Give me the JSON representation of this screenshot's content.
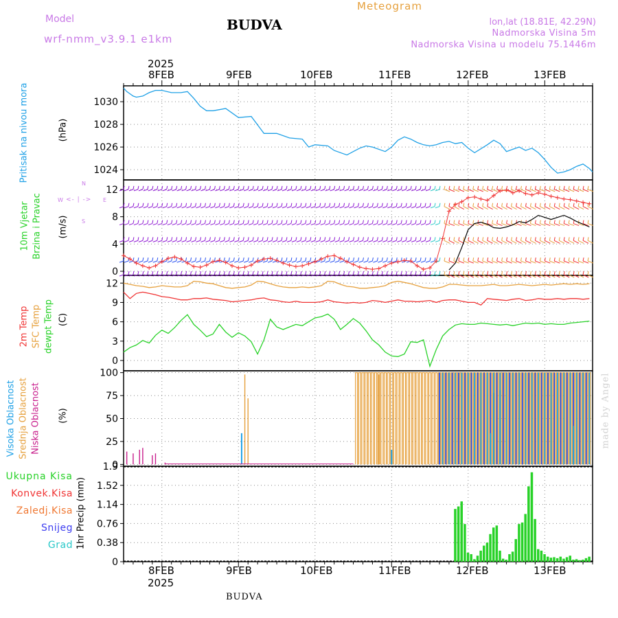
{
  "header": {
    "model_label": "Model",
    "model_name": "wrf-nmm_v3.9.1 e1km",
    "station": "BUDVA",
    "meteogram": "Meteogram",
    "lonlat": "lon,lat (18.81E, 42.29N)",
    "elevation": "Nadmorska Visina 5m",
    "model_elevation": "Nadmorska Visina u modelu 75.1446m",
    "footer_station": "BUDVA",
    "watermark": "made by Angel"
  },
  "colors": {
    "cyan": "#1ea0e6",
    "blue": "#2850f0",
    "purple": "#8c14d2",
    "red": "#f03232",
    "orange": "#e6a03c",
    "green": "#28d228",
    "magenta": "#c81e8c",
    "black": "#000000",
    "teal": "#28c8c8",
    "violet": "#c878e6"
  },
  "chart_data": [
    {
      "id": "pressure",
      "type": "line",
      "ylabel": "(hPa)",
      "side_labels": [
        "Pritisak na nivou mora"
      ],
      "ylim": [
        1023.1,
        1031.4
      ],
      "yticks": [
        1024,
        1026,
        1028,
        1030
      ],
      "x_start_hour": 0,
      "x_end_hour": 147,
      "x": [
        0,
        1,
        2,
        3,
        4,
        6,
        8,
        10,
        12,
        15,
        18,
        20,
        22,
        24,
        26,
        28,
        30,
        32,
        36,
        40,
        44,
        48,
        52,
        56,
        58,
        60,
        64,
        66,
        70,
        72,
        74,
        76,
        78,
        82,
        84,
        86,
        88,
        90,
        92,
        94,
        96,
        98,
        100,
        102,
        104,
        106,
        108,
        110,
        114,
        116,
        118,
        120,
        122,
        124,
        126,
        128,
        130,
        132,
        134,
        136,
        138,
        140,
        142,
        144,
        146,
        147
      ],
      "series": [
        {
          "name": "",
          "values": [
            1031.2,
            1030.9,
            1030.7,
            1030.5,
            1030.4,
            1030.5,
            1030.8,
            1031.0,
            1031.0,
            1030.8,
            1030.8,
            1030.9,
            1030.3,
            1029.6,
            1029.2,
            1029.2,
            1029.3,
            1029.4,
            1028.6,
            1028.7,
            1027.2,
            1027.2,
            1026.8,
            1026.7,
            1026.0,
            1026.2,
            1026.1,
            1025.7,
            1025.3,
            1025.6,
            1025.9,
            1026.1,
            1026.0,
            1025.6,
            1026.0,
            1026.6,
            1026.9,
            1026.7,
            1026.4,
            1026.2,
            1026.1,
            1026.2,
            1026.4,
            1026.5,
            1026.3,
            1026.4,
            1025.9,
            1025.5,
            1026.2,
            1026.6,
            1026.3,
            1025.6,
            1025.8,
            1026.0,
            1025.7,
            1025.9,
            1025.5,
            1024.9,
            1024.2,
            1023.7,
            1023.8,
            1024.0,
            1024.3,
            1024.5,
            1024.1,
            1023.8
          ]
        }
      ]
    },
    {
      "id": "wind",
      "type": "line",
      "ylabel": "(m/s)",
      "side_labels": [
        "10m Vjetar",
        "Brzina i Pravac"
      ],
      "compass": {
        "n": "N",
        "w": "W",
        "e": "E",
        "s": "S"
      },
      "ylim": [
        -0.6,
        13.4
      ],
      "yticks": [
        0,
        4,
        8,
        12
      ],
      "speed_x": [
        0,
        2,
        4,
        6,
        8,
        10,
        12,
        14,
        16,
        18,
        20,
        22,
        24,
        26,
        28,
        30,
        32,
        34,
        36,
        38,
        40,
        42,
        44,
        46,
        48,
        50,
        52,
        54,
        56,
        58,
        60,
        62,
        64,
        66,
        68,
        70,
        72,
        74,
        76,
        78,
        80,
        82,
        84,
        86,
        88,
        90,
        92,
        94,
        96,
        98,
        100,
        102,
        104,
        106,
        108,
        110,
        112,
        114,
        116,
        118,
        120,
        122,
        124,
        126,
        128,
        130,
        132,
        134,
        136,
        138,
        140,
        142,
        144,
        146
      ],
      "speed_red": [
        2.3,
        1.8,
        1.2,
        0.8,
        0.5,
        0.8,
        1.4,
        1.9,
        2.1,
        1.8,
        1.2,
        0.7,
        0.6,
        0.9,
        1.4,
        1.6,
        1.3,
        0.8,
        0.5,
        0.6,
        0.9,
        1.5,
        1.8,
        1.9,
        1.6,
        1.2,
        0.9,
        0.7,
        0.8,
        1.1,
        1.4,
        1.8,
        2.2,
        2.3,
        1.9,
        1.4,
        1.0,
        0.6,
        0.4,
        0.3,
        0.4,
        0.8,
        1.2,
        1.4,
        1.6,
        1.5,
        0.8,
        0.3,
        0.5,
        1.5,
        4.8,
        8.8,
        9.8,
        10.2,
        10.8,
        10.9,
        10.6,
        10.4,
        11.1,
        11.8,
        11.9,
        11.5,
        11.8,
        11.4,
        11.2,
        11.5,
        11.3,
        11.0,
        10.8,
        10.6,
        10.5,
        10.3,
        10.1,
        9.9
      ],
      "speed_black_x": [
        102,
        104,
        106,
        108,
        110,
        112,
        114,
        116,
        118,
        120,
        122,
        124,
        126,
        128,
        130,
        132,
        134,
        136,
        138,
        140,
        142,
        144,
        146
      ],
      "speed_black": [
        0.2,
        1.2,
        3.5,
        6.1,
        7.0,
        7.2,
        6.9,
        6.4,
        6.3,
        6.5,
        6.8,
        7.3,
        7.1,
        7.6,
        8.2,
        7.9,
        7.6,
        7.9,
        8.2,
        7.8,
        7.3,
        6.9,
        6.5
      ],
      "barb_levels": [
        12,
        9.5,
        7,
        4.5,
        1.5,
        -0.5
      ]
    },
    {
      "id": "temperature",
      "type": "line",
      "ylabel": "(C)",
      "side_labels": [
        "2m Temp",
        "SFC Temp",
        "dewpt Temp"
      ],
      "ylim": [
        -1.6,
        13.2
      ],
      "yticks": [
        0,
        3,
        6,
        9,
        12
      ],
      "x": [
        0,
        2,
        4,
        6,
        8,
        10,
        12,
        14,
        16,
        18,
        20,
        22,
        24,
        26,
        28,
        30,
        32,
        34,
        36,
        38,
        40,
        42,
        44,
        46,
        48,
        50,
        52,
        54,
        56,
        58,
        60,
        62,
        64,
        66,
        68,
        70,
        72,
        74,
        76,
        78,
        80,
        82,
        84,
        86,
        88,
        90,
        92,
        94,
        96,
        98,
        100,
        102,
        104,
        106,
        108,
        110,
        112,
        114,
        116,
        118,
        120,
        122,
        124,
        126,
        128,
        130,
        132,
        134,
        136,
        138,
        140,
        142,
        144,
        146
      ],
      "series": [
        {
          "name": "2m Temp",
          "values": [
            10.6,
            9.6,
            10.4,
            10.6,
            10.4,
            10.2,
            9.9,
            9.8,
            9.6,
            9.4,
            9.4,
            9.6,
            9.6,
            9.7,
            9.5,
            9.4,
            9.3,
            9.1,
            9.2,
            9.3,
            9.4,
            9.6,
            9.7,
            9.4,
            9.3,
            9.1,
            9.0,
            9.2,
            9.0,
            9.0,
            9.0,
            9.1,
            9.4,
            9.1,
            9.0,
            8.9,
            9.0,
            8.9,
            9.0,
            9.3,
            9.2,
            9.0,
            9.2,
            9.4,
            9.2,
            9.2,
            9.1,
            9.2,
            9.3,
            9.0,
            9.3,
            9.4,
            9.4,
            9.2,
            9.0,
            9.0,
            8.6,
            9.6,
            9.5,
            9.4,
            9.3,
            9.5,
            9.6,
            9.3,
            9.4,
            9.6,
            9.5,
            9.5,
            9.6,
            9.5,
            9.6,
            9.6,
            9.5,
            9.6
          ]
        },
        {
          "name": "SFC Temp",
          "values": [
            12.0,
            11.8,
            11.6,
            11.5,
            11.3,
            11.4,
            11.6,
            11.5,
            11.4,
            11.4,
            11.6,
            12.3,
            12.2,
            12.0,
            11.9,
            11.6,
            11.3,
            11.2,
            11.3,
            11.4,
            11.7,
            12.3,
            12.2,
            11.9,
            11.6,
            11.4,
            11.3,
            11.3,
            11.4,
            11.3,
            11.4,
            11.6,
            12.3,
            12.2,
            11.8,
            11.5,
            11.4,
            11.2,
            11.2,
            11.3,
            11.4,
            11.6,
            12.1,
            12.3,
            12.1,
            11.9,
            11.6,
            11.3,
            11.2,
            11.2,
            11.4,
            11.8,
            11.8,
            11.7,
            11.6,
            11.6,
            11.6,
            11.7,
            11.8,
            11.6,
            11.6,
            11.7,
            11.8,
            11.7,
            11.6,
            11.7,
            11.8,
            11.7,
            11.8,
            11.9,
            11.8,
            11.9,
            11.8,
            11.9
          ]
        },
        {
          "name": "dewpt Temp",
          "values": [
            1.3,
            2.0,
            2.4,
            3.1,
            2.7,
            3.9,
            4.7,
            4.2,
            5.1,
            6.2,
            7.1,
            5.6,
            4.7,
            3.7,
            4.1,
            5.6,
            4.4,
            3.6,
            4.3,
            3.8,
            2.9,
            1.0,
            3.2,
            6.4,
            5.2,
            4.8,
            5.2,
            5.6,
            5.4,
            6.0,
            6.6,
            6.8,
            7.2,
            6.4,
            4.8,
            5.6,
            6.5,
            5.8,
            4.6,
            3.2,
            2.4,
            1.3,
            0.7,
            0.6,
            1.0,
            2.9,
            2.8,
            3.2,
            -0.9,
            1.7,
            3.8,
            4.8,
            5.5,
            5.7,
            5.6,
            5.6,
            5.8,
            5.7,
            5.6,
            5.5,
            5.6,
            5.4,
            5.6,
            5.8,
            5.7,
            5.8,
            5.6,
            5.7,
            5.6,
            5.6,
            5.8,
            5.9,
            6.0,
            6.1
          ]
        }
      ]
    },
    {
      "id": "cloud",
      "type": "bar",
      "ylabel": "(%)",
      "side_labels": [
        "Visoka Oblacnost",
        "Srednja Oblacnost",
        "Niska Oblacnost"
      ],
      "ylim": [
        -2,
        102
      ],
      "yticks": [
        0,
        25,
        50,
        75,
        100
      ],
      "low_bars": [
        [
          1,
          14
        ],
        [
          3,
          12
        ],
        [
          5,
          16
        ],
        [
          6,
          18
        ],
        [
          9,
          10
        ],
        [
          10,
          12
        ],
        [
          13,
          2
        ]
      ],
      "mid_bars": [
        [
          38,
          98
        ],
        [
          39,
          72
        ],
        [
          80,
          98
        ],
        [
          108,
          98
        ]
      ],
      "high_bars": [
        [
          37,
          34
        ],
        [
          84,
          16
        ],
        [
          115,
          34
        ],
        [
          116,
          78
        ],
        [
          118,
          81
        ],
        [
          141,
          42
        ]
      ],
      "mid_start_hour": 73,
      "high_start_hour": 99
    },
    {
      "id": "precip",
      "type": "bar",
      "ylabel": "1hr Precip (mm)",
      "legend": [
        "Ukupna Kisa",
        "Konvek.Kisa",
        "Zaledj.Kisa",
        "Snijeg",
        "Grad"
      ],
      "ylim": [
        0,
        1.9
      ],
      "yticks": [
        0,
        0.38,
        0.76,
        1.14,
        1.52,
        1.9
      ],
      "x": [
        104,
        105,
        106,
        107,
        108,
        109,
        110,
        111,
        112,
        113,
        114,
        115,
        116,
        117,
        118,
        119,
        120,
        121,
        122,
        123,
        124,
        125,
        126,
        127,
        128,
        129,
        130,
        131,
        132,
        133,
        134,
        135,
        136,
        137,
        138,
        139,
        140,
        141,
        142,
        143,
        144,
        145,
        146
      ],
      "values": [
        1.05,
        1.1,
        1.2,
        0.75,
        0.18,
        0.15,
        0.05,
        0.12,
        0.22,
        0.32,
        0.38,
        0.55,
        0.68,
        0.72,
        0.22,
        0.06,
        0.04,
        0.15,
        0.2,
        0.45,
        0.75,
        0.78,
        0.95,
        1.5,
        1.78,
        0.85,
        0.25,
        0.22,
        0.15,
        0.1,
        0.08,
        0.09,
        0.07,
        0.1,
        0.06,
        0.09,
        0.12,
        0.04,
        0.05,
        0.03,
        0.04,
        0.07,
        0.1
      ]
    }
  ],
  "time_axis": {
    "top_labels": [
      "8FEB",
      "9FEB",
      "10FEB",
      "11FEB",
      "12FEB",
      "13FEB"
    ],
    "bottom_labels": [
      "8FEB",
      "9FEB",
      "10FEB",
      "11FEB",
      "12FEB",
      "13FEB"
    ],
    "year": "2025",
    "day_hours": [
      12,
      36,
      60,
      84,
      108,
      132
    ]
  }
}
